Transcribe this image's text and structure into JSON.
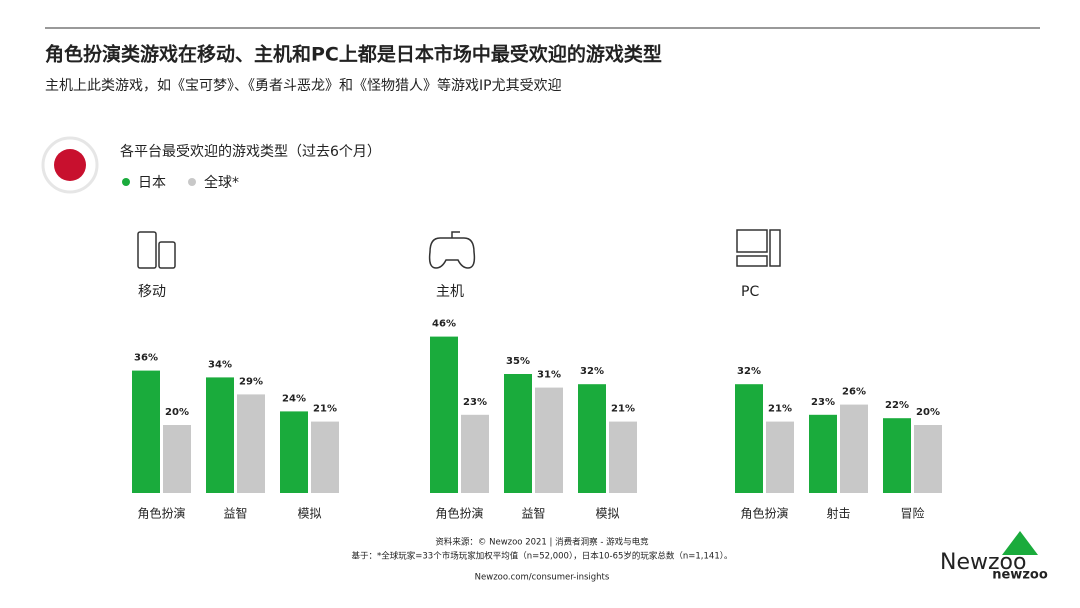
{
  "header": {
    "title": "角色扮演类游戏在移动、主机和PC上都是日本市场中最受欢迎的游戏类型",
    "subtitle": "主机上此类游戏，如《宝可梦》、《勇者斗恶龙》和《怪物猎人》等游戏IP尤其受欢迎"
  },
  "section_title": "各平台最受欢迎的游戏类型（过去6个月）",
  "chart_data": [
    {
      "type": "bar",
      "title": "移动",
      "categories": [
        "角色扮演",
        "益智",
        "模拟"
      ],
      "series": [
        {
          "name": "日本",
          "color": "#1aab3c",
          "values": [
            36,
            34,
            24
          ],
          "value_labels": [
            "36%",
            "34%",
            "24%"
          ]
        },
        {
          "name": "全球*",
          "color": "#c8c8c8",
          "values": [
            20,
            29,
            21
          ],
          "value_labels": [
            "20%",
            "29%",
            "21%"
          ]
        }
      ]
    },
    {
      "type": "bar",
      "title": "主机",
      "categories": [
        "角色扮演",
        "益智",
        "模拟"
      ],
      "series": [
        {
          "name": "日本",
          "color": "#1aab3c",
          "values": [
            46,
            35,
            32
          ],
          "value_labels": [
            "46%",
            "35%",
            "32%"
          ]
        },
        {
          "name": "全球*",
          "color": "#c8c8c8",
          "values": [
            23,
            31,
            21
          ],
          "value_labels": [
            "23%",
            "31%",
            "21%"
          ]
        }
      ]
    },
    {
      "type": "bar",
      "title": "PC",
      "categories": [
        "角色扮演",
        "射击",
        "冒险"
      ],
      "series": [
        {
          "name": "日本",
          "color": "#1aab3c",
          "values": [
            32,
            23,
            22
          ],
          "value_labels": [
            "32%",
            "23%",
            "22%"
          ]
        },
        {
          "name": "全球*",
          "color": "#c8c8c8",
          "values": [
            21,
            26,
            20
          ],
          "value_labels": [
            "21%",
            "26%",
            "20%"
          ]
        }
      ]
    }
  ],
  "footer": {
    "source": "资料来源：© Newzoo 2021 | 消费者洞察 - 游戏与电竞",
    "note": "基于：*全球玩家=33个市场玩家加权平均值（n=52,000），日本10-65岁的玩家总数（n=1,141）。",
    "link": "Newzoo.com/consumer-insights"
  },
  "watermark": "Newzoo",
  "logo": "newzoo"
}
